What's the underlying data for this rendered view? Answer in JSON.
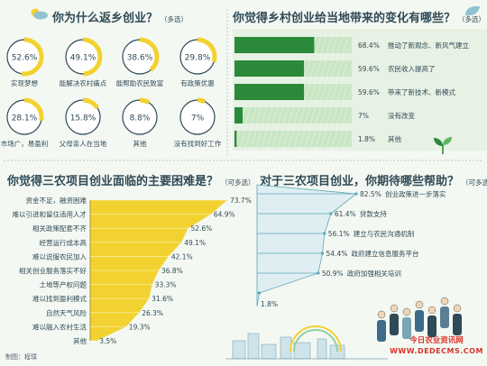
{
  "credit": "制图：程璞",
  "watermark": {
    "line1": "今日农业资讯网",
    "line2": "WWW.DEDECMS.COM"
  },
  "icons": {
    "panel1": "cloud-sun-icon",
    "panel2": "leaf-icon",
    "corner": "sprout-icon"
  },
  "colors": {
    "accent": "#f2d230",
    "dark_green": "#2a8a3a",
    "light_green": "#c8e6c3",
    "teal": "#5aa8b8",
    "title": "#2f4a57"
  },
  "chart_data": [
    {
      "type": "donut",
      "title": "你为什么返乡创业？",
      "note": "（多选）",
      "items": [
        {
          "label": "实现梦想",
          "value": 52.6,
          "value_label": "52.6%"
        },
        {
          "label": "能解决农村痛点",
          "value": 49.1,
          "value_label": "49.1%"
        },
        {
          "label": "能帮助农民致富",
          "value": 38.6,
          "value_label": "38.6%"
        },
        {
          "label": "有政策优惠",
          "value": 29.8,
          "value_label": "29.8%"
        },
        {
          "label": "市场广，易盈利",
          "value": 28.1,
          "value_label": "28.1%"
        },
        {
          "label": "父母亲人在当地",
          "value": 15.8,
          "value_label": "15.8%"
        },
        {
          "label": "其他",
          "value": 8.8,
          "value_label": "8.8%"
        },
        {
          "label": "没有找到好工作",
          "value": 7,
          "value_label": "7%"
        }
      ]
    },
    {
      "type": "bar",
      "title": "你觉得乡村创业给当地带来的变化有哪些？",
      "note": "（多选）",
      "categories": [
        "推动了新观念、新风气建立",
        "农民收入提高了",
        "带来了新技术、新模式",
        "没有改变",
        "其他"
      ],
      "values": [
        68.4,
        59.6,
        59.6,
        7,
        1.8
      ],
      "value_labels": [
        "68.4%",
        "59.6%",
        "59.6%",
        "7%",
        "1.8%"
      ]
    },
    {
      "type": "area",
      "title": "你觉得三农项目创业面临的主要困难是？",
      "note": "（可多选）",
      "categories": [
        "资金不足，融资困难",
        "难以引进和留住适用人才",
        "相关政策配套不齐",
        "经营运行成本高",
        "难以说服农民加入",
        "相关创业服务落实不好",
        "土地等产权问题",
        "难以找到盈利模式",
        "自然天气风险",
        "难以融入农村生活",
        "其他"
      ],
      "values": [
        73.7,
        64.9,
        52.6,
        49.1,
        42.1,
        36.8,
        33.3,
        31.6,
        26.3,
        19.3,
        3.5
      ],
      "value_labels": [
        "73.7%",
        "64.9%",
        "52.6%",
        "49.1%",
        "42.1%",
        "36.8%",
        "33.3%",
        "31.6%",
        "26.3%",
        "19.3%",
        "3.5%"
      ]
    },
    {
      "type": "bar",
      "title": "对于三农项目创业，你期待哪些帮助？",
      "note": "（可多选）",
      "categories": [
        "创业政策进一步落实",
        "贷款支持",
        "建立与农民沟通机制",
        "政府建立信息服务平台",
        "政府加强相关培训",
        ""
      ],
      "values": [
        82.5,
        61.4,
        56.1,
        54.4,
        50.9,
        1.8
      ],
      "value_labels": [
        "82.5%",
        "61.4%",
        "56.1%",
        "54.4%",
        "50.9%",
        "1.8%"
      ]
    }
  ]
}
